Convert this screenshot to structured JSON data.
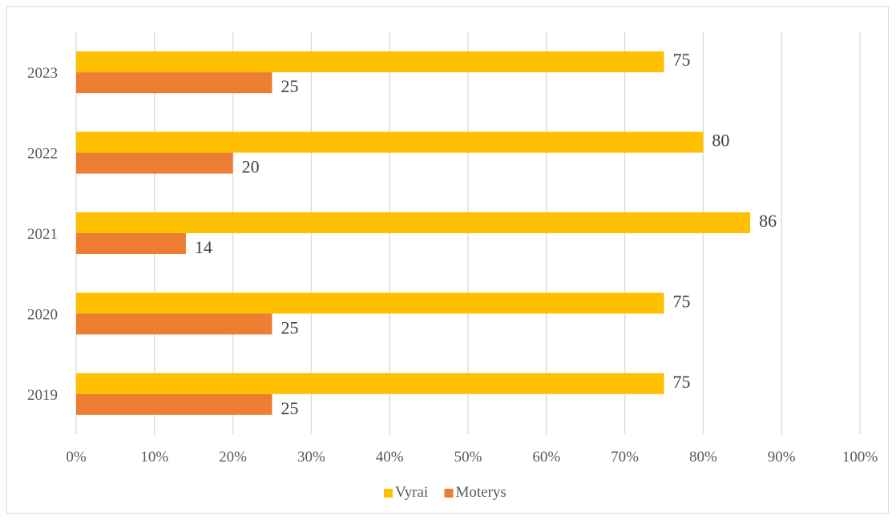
{
  "chart_data": {
    "type": "bar",
    "orientation": "horizontal",
    "title": "",
    "xlabel": "",
    "ylabel": "",
    "categories": [
      "2019",
      "2020",
      "2021",
      "2022",
      "2023"
    ],
    "series": [
      {
        "name": "Vyrai",
        "values": [
          75,
          75,
          86,
          80,
          75
        ],
        "color": "#FFC000"
      },
      {
        "name": "Moterys",
        "values": [
          25,
          25,
          14,
          20,
          25
        ],
        "color": "#ED7D31"
      }
    ],
    "xlim": [
      0,
      100
    ],
    "x_ticks": [
      "0%",
      "10%",
      "20%",
      "30%",
      "40%",
      "50%",
      "60%",
      "70%",
      "80%",
      "90%",
      "100%"
    ],
    "grid": true,
    "legend_position": "bottom",
    "data_labels": true
  }
}
